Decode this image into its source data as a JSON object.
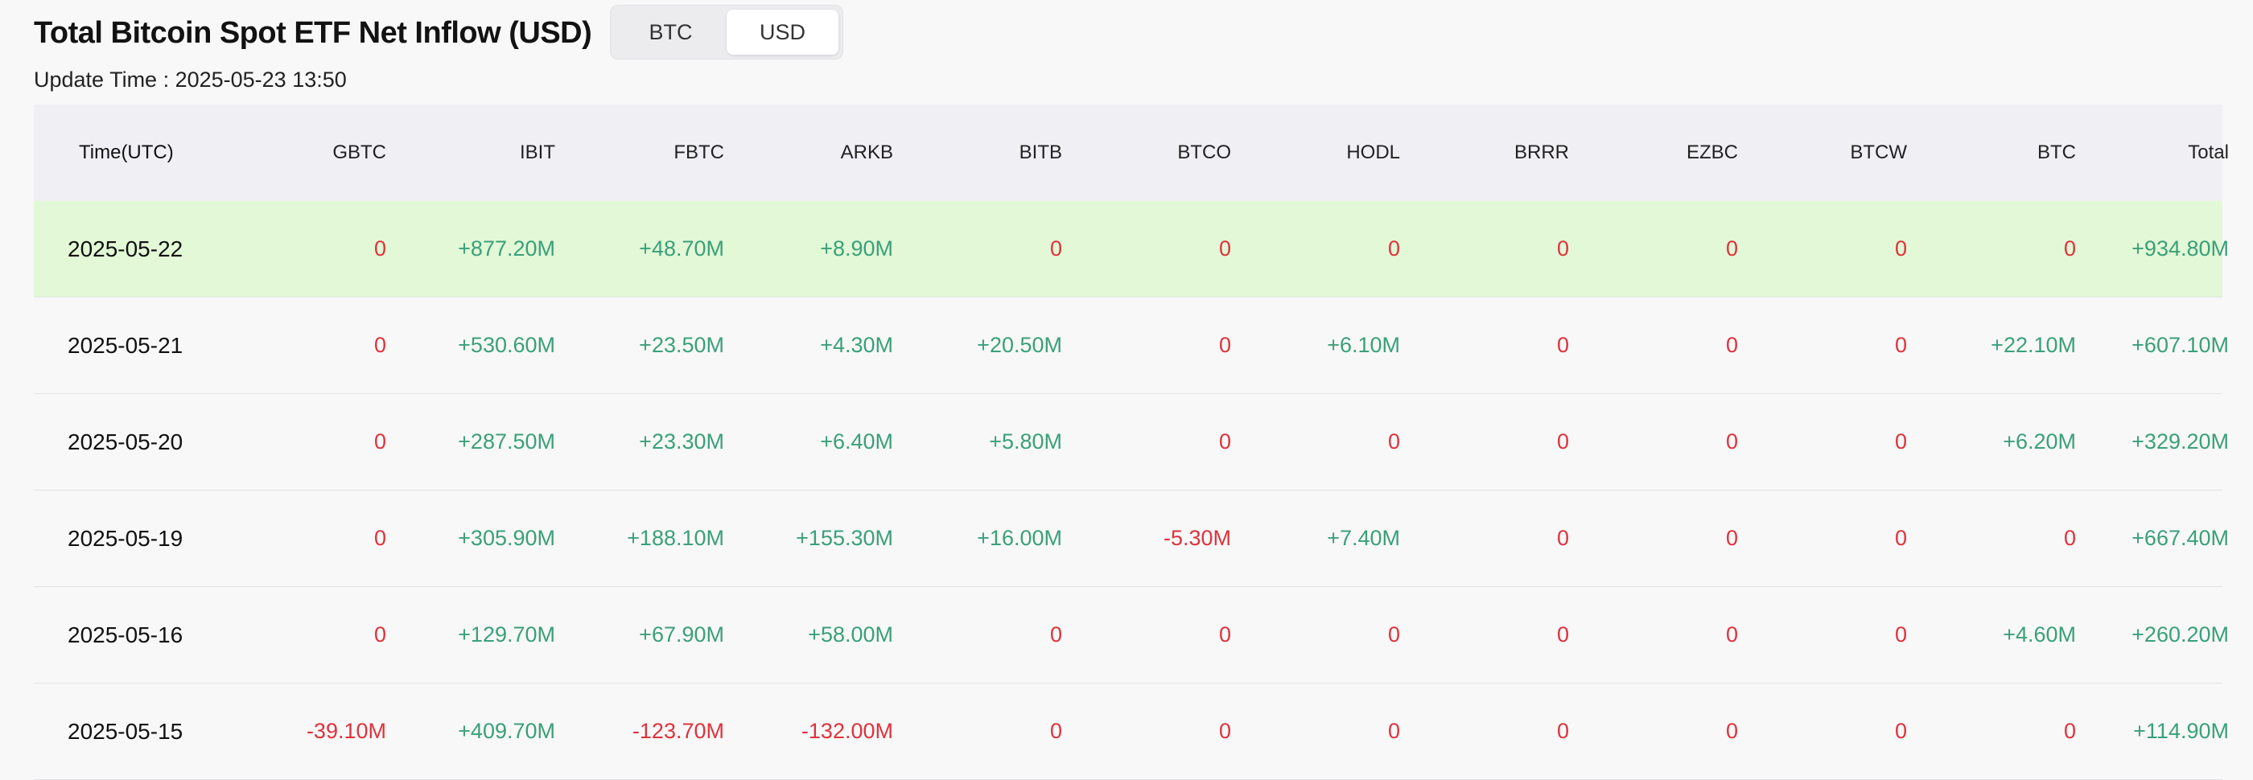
{
  "title": "Total Bitcoin Spot ETF Net Inflow (USD)",
  "toggle": {
    "options": [
      "BTC",
      "USD"
    ],
    "selected": "USD"
  },
  "update_time": "Update Time : 2025-05-23 13:50",
  "colors": {
    "positive": "#3aa07a",
    "negative": "#e0323c",
    "highlight": "#e2f8d6"
  },
  "table": {
    "columns": [
      "Time(UTC)",
      "GBTC",
      "IBIT",
      "FBTC",
      "ARKB",
      "BITB",
      "BTCO",
      "HODL",
      "BRRR",
      "EZBC",
      "BTCW",
      "BTC",
      "Total"
    ],
    "rows": [
      [
        "2025-05-22",
        "0",
        "+877.20M",
        "+48.70M",
        "+8.90M",
        "0",
        "0",
        "0",
        "0",
        "0",
        "0",
        "0",
        "+934.80M"
      ],
      [
        "2025-05-21",
        "0",
        "+530.60M",
        "+23.50M",
        "+4.30M",
        "+20.50M",
        "0",
        "+6.10M",
        "0",
        "0",
        "0",
        "+22.10M",
        "+607.10M"
      ],
      [
        "2025-05-20",
        "0",
        "+287.50M",
        "+23.30M",
        "+6.40M",
        "+5.80M",
        "0",
        "0",
        "0",
        "0",
        "0",
        "+6.20M",
        "+329.20M"
      ],
      [
        "2025-05-19",
        "0",
        "+305.90M",
        "+188.10M",
        "+155.30M",
        "+16.00M",
        "-5.30M",
        "+7.40M",
        "0",
        "0",
        "0",
        "0",
        "+667.40M"
      ],
      [
        "2025-05-16",
        "0",
        "+129.70M",
        "+67.90M",
        "+58.00M",
        "0",
        "0",
        "0",
        "0",
        "0",
        "0",
        "+4.60M",
        "+260.20M"
      ],
      [
        "2025-05-15",
        "-39.10M",
        "+409.70M",
        "-123.70M",
        "-132.00M",
        "0",
        "0",
        "0",
        "0",
        "0",
        "0",
        "0",
        "+114.90M"
      ]
    ]
  }
}
